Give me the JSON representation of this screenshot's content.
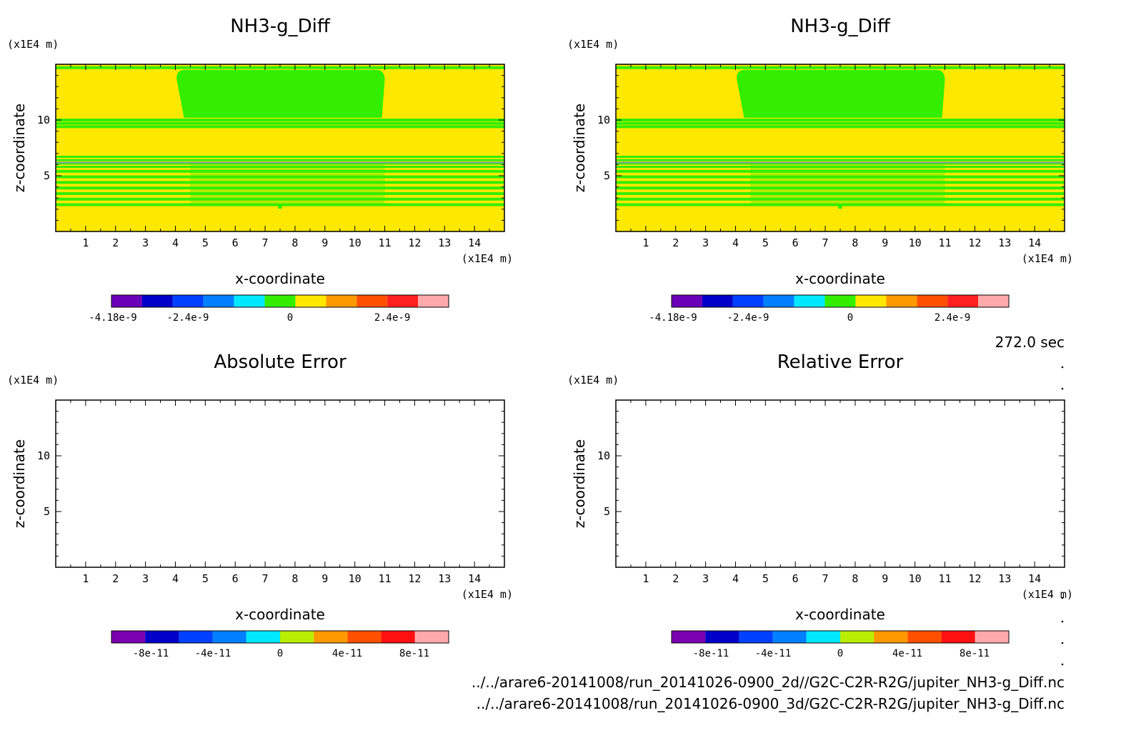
{
  "time_label": "272.0 sec",
  "footer": {
    "line1": "../../arare6-20141008/run_20141026-0900_2d//G2C-C2R-R2G/jupiter_NH3-g_Diff.nc",
    "line2": "../../arare6-20141008/run_20141026-0900_3d/G2C-C2R-R2G/jupiter_NH3-g_Diff.nc"
  },
  "colors": {
    "background_field": "#ffe800",
    "green": "#33ee00",
    "yellow": "#ffe800",
    "frame": "#000000"
  },
  "chart_data": [
    {
      "type": "heatmap",
      "title": "NH3-g_Diff",
      "xlabel": "x-coordinate",
      "ylabel": "z-coordinate",
      "x_unit": "(x1E4 m)",
      "y_unit": "(x1E4 m)",
      "xlim": [
        0,
        15
      ],
      "ylim": [
        0,
        15
      ],
      "x_ticks": [
        "1",
        "2",
        "3",
        "4",
        "5",
        "6",
        "7",
        "8",
        "9",
        "10",
        "11",
        "12",
        "13",
        "14"
      ],
      "y_ticks": [
        "5",
        "10"
      ],
      "colorbar": {
        "colors": [
          "#6a00b8",
          "#0000c8",
          "#0040ff",
          "#0080ff",
          "#00e8ff",
          "#33ee00",
          "#ffe800",
          "#ff9900",
          "#ff5000",
          "#ff2020",
          "#ffaaaa"
        ],
        "labels": [
          "-4.18e-9",
          "-2.4e-9",
          "0",
          "2.4e-9"
        ]
      },
      "fields": {
        "background": "yellow",
        "green_dome": {
          "x": [
            4.0,
            11.0
          ],
          "z": [
            10.2,
            14.5
          ]
        },
        "upper_bands_z": [
          9.4,
          9.7,
          10.0,
          14.7
        ],
        "mid_bands_z": [
          5.8,
          6.1,
          6.4,
          6.7
        ],
        "lower_bands_z": [
          2.4,
          2.9,
          3.4,
          3.9,
          4.4,
          4.9,
          5.4
        ]
      }
    },
    {
      "type": "heatmap",
      "title": "NH3-g_Diff",
      "xlabel": "x-coordinate",
      "ylabel": "z-coordinate",
      "x_unit": "(x1E4 m)",
      "y_unit": "(x1E4 m)",
      "xlim": [
        0,
        15
      ],
      "ylim": [
        0,
        15
      ],
      "x_ticks": [
        "1",
        "2",
        "3",
        "4",
        "5",
        "6",
        "7",
        "8",
        "9",
        "10",
        "11",
        "12",
        "13",
        "14"
      ],
      "y_ticks": [
        "5",
        "10"
      ],
      "colorbar": {
        "colors": [
          "#6a00b8",
          "#0000c8",
          "#0040ff",
          "#0080ff",
          "#00e8ff",
          "#33ee00",
          "#ffe800",
          "#ff9900",
          "#ff5000",
          "#ff2020",
          "#ffaaaa"
        ],
        "labels": [
          "-4.18e-9",
          "-2.4e-9",
          "0",
          "2.4e-9"
        ]
      },
      "fields": {
        "background": "yellow",
        "green_dome": {
          "x": [
            4.0,
            11.0
          ],
          "z": [
            10.2,
            14.5
          ]
        },
        "upper_bands_z": [
          9.4,
          9.7,
          10.0,
          14.7
        ],
        "mid_bands_z": [
          5.8,
          6.1,
          6.4,
          6.7
        ],
        "lower_bands_z": [
          2.4,
          2.9,
          3.4,
          3.9,
          4.4,
          4.9,
          5.4
        ]
      }
    },
    {
      "type": "heatmap",
      "title": "Absolute Error",
      "xlabel": "x-coordinate",
      "ylabel": "z-coordinate",
      "x_unit": "(x1E4 m)",
      "y_unit": "(x1E4 m)",
      "xlim": [
        0,
        15
      ],
      "ylim": [
        0,
        15
      ],
      "x_ticks": [
        "1",
        "2",
        "3",
        "4",
        "5",
        "6",
        "7",
        "8",
        "9",
        "10",
        "11",
        "12",
        "13",
        "14"
      ],
      "y_ticks": [
        "5",
        "10"
      ],
      "colorbar": {
        "colors": [
          "#7a00b0",
          "#0000c8",
          "#0040ff",
          "#0080ff",
          "#00e8ff",
          "#b8ee00",
          "#ff9900",
          "#ff5000",
          "#ff1010",
          "#ffaaaa"
        ],
        "labels": [
          "-8e-11",
          "-4e-11",
          "0",
          "4e-11",
          "8e-11"
        ]
      },
      "fields": null
    },
    {
      "type": "heatmap",
      "title": "Relative Error",
      "xlabel": "x-coordinate",
      "ylabel": "z-coordinate",
      "x_unit": "(x1E4 m)",
      "y_unit": "(x1E4 m)",
      "xlim": [
        0,
        15
      ],
      "ylim": [
        0,
        15
      ],
      "x_ticks": [
        "1",
        "2",
        "3",
        "4",
        "5",
        "6",
        "7",
        "8",
        "9",
        "10",
        "11",
        "12",
        "13",
        "14"
      ],
      "y_ticks": [
        "5",
        "10"
      ],
      "colorbar": {
        "colors": [
          "#7a00b0",
          "#0000c8",
          "#0040ff",
          "#0080ff",
          "#00e8ff",
          "#b8ee00",
          "#ff9900",
          "#ff5000",
          "#ff1010",
          "#ffaaaa"
        ],
        "labels": [
          "-8e-11",
          "-4e-11",
          "0",
          "4e-11",
          "8e-11"
        ]
      },
      "fields": null
    }
  ]
}
